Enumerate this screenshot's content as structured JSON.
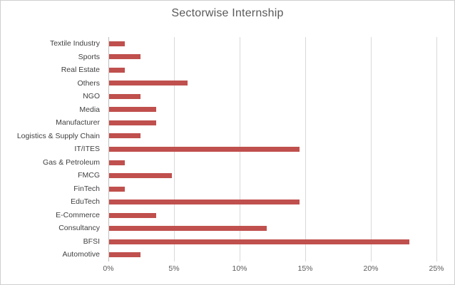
{
  "window": {
    "background": "#ffffff",
    "border_color": "#cfcfcf"
  },
  "chart_data": {
    "type": "bar",
    "orientation": "horizontal",
    "title": "Sectorwise Internship",
    "categories": [
      "Textile Industry",
      "Sports",
      "Real Estate",
      "Others",
      "NGO",
      "Media",
      "Manufacturer",
      "Logistics & Supply Chain",
      "IT/ITES",
      "Gas & Petroleum",
      "FMCG",
      "FinTech",
      "EduTech",
      "E-Commerce",
      "Consultancy",
      "BFSI",
      "Automotive"
    ],
    "values": [
      1.2,
      2.4,
      1.2,
      6.0,
      2.4,
      3.6,
      3.6,
      2.4,
      14.5,
      1.2,
      4.8,
      1.2,
      14.5,
      3.6,
      12.0,
      22.9,
      2.4
    ],
    "value_unit": "%",
    "xlim": [
      0,
      25
    ],
    "x_tick_step": 5,
    "x_tick_labels": [
      "0%",
      "5%",
      "10%",
      "15%",
      "20%",
      "25%"
    ],
    "grid": true,
    "legend": false,
    "colors": {
      "bar": "#C0504D",
      "gridline": "#D9D9D9",
      "axis_line": "#BFBFBF",
      "title_text": "#595959",
      "category_text": "#404040",
      "tick_text": "#595959"
    }
  }
}
